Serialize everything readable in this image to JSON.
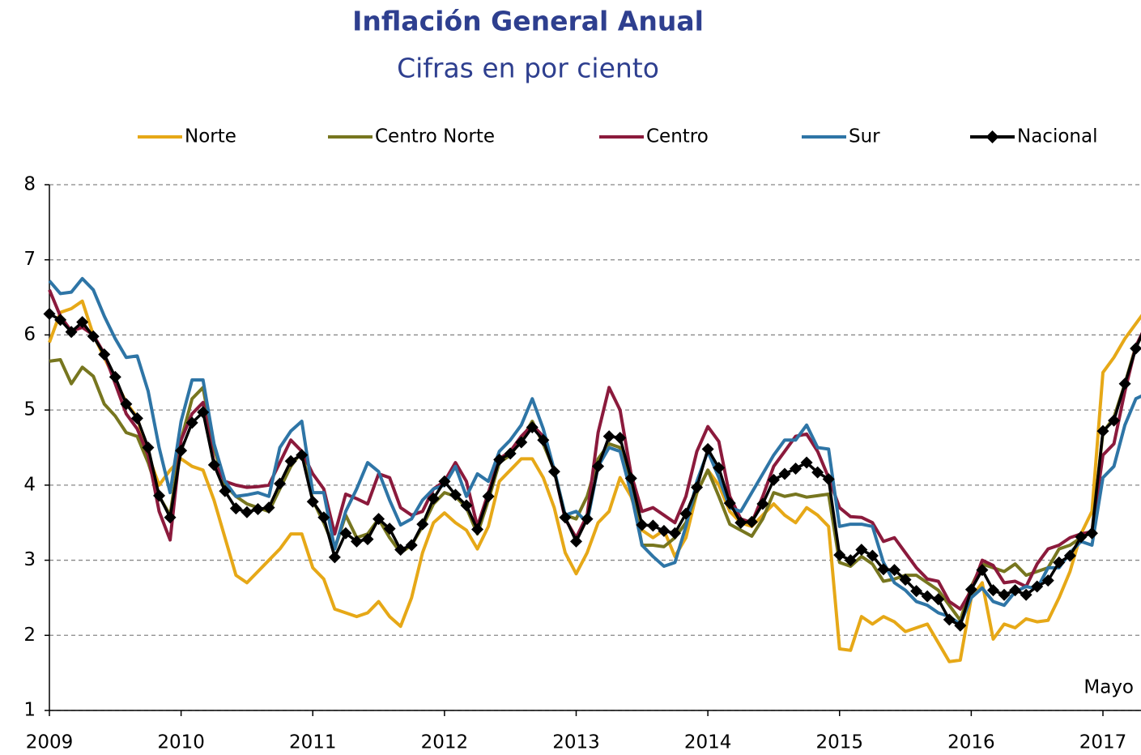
{
  "chart_data": {
    "type": "line",
    "title": "Inflación General Anual",
    "subtitle": "Cifras en por ciento",
    "annotation": "Mayo",
    "categories": [
      "2009",
      null,
      null,
      null,
      null,
      null,
      null,
      null,
      null,
      null,
      null,
      null,
      "2010",
      null,
      null,
      null,
      null,
      null,
      null,
      null,
      null,
      null,
      null,
      null,
      "2011",
      null,
      null,
      null,
      null,
      null,
      null,
      null,
      null,
      null,
      null,
      null,
      "2012",
      null,
      null,
      null,
      null,
      null,
      null,
      null,
      null,
      null,
      null,
      null,
      "2013",
      null,
      null,
      null,
      null,
      null,
      null,
      null,
      null,
      null,
      null,
      null,
      "2014",
      null,
      null,
      null,
      null,
      null,
      null,
      null,
      null,
      null,
      null,
      null,
      "2015",
      null,
      null,
      null,
      null,
      null,
      null,
      null,
      null,
      null,
      null,
      null,
      "2016",
      null,
      null,
      null,
      null,
      null,
      null,
      null,
      null,
      null,
      null,
      null,
      "2017",
      null,
      null,
      null,
      null
    ],
    "ylim": [
      1,
      8
    ],
    "yticks": [
      1,
      2,
      3,
      4,
      5,
      6,
      7,
      8
    ],
    "grid": true,
    "legend": "top",
    "series": [
      {
        "name": "Norte",
        "color": "#e6a817",
        "values": [
          5.9,
          6.3,
          6.35,
          6.45,
          6.0,
          5.7,
          5.4,
          5.1,
          4.9,
          4.4,
          4.0,
          4.2,
          4.35,
          4.25,
          4.2,
          3.8,
          3.3,
          2.8,
          2.7,
          2.85,
          3.0,
          3.15,
          3.35,
          3.35,
          2.9,
          2.75,
          2.35,
          2.3,
          2.25,
          2.3,
          2.45,
          2.25,
          2.12,
          2.5,
          3.1,
          3.5,
          3.63,
          3.5,
          3.4,
          3.15,
          3.45,
          4.05,
          4.2,
          4.35,
          4.35,
          4.1,
          3.7,
          3.1,
          2.82,
          3.1,
          3.5,
          3.65,
          4.1,
          3.85,
          3.4,
          3.3,
          3.4,
          3.05,
          3.3,
          3.9,
          4.2,
          4.0,
          3.65,
          3.5,
          3.45,
          3.6,
          3.75,
          3.6,
          3.5,
          3.7,
          3.6,
          3.45,
          1.82,
          1.8,
          2.25,
          2.15,
          2.25,
          2.18,
          2.05,
          2.1,
          2.15,
          1.9,
          1.65,
          1.67,
          2.5,
          2.7,
          1.95,
          2.15,
          2.1,
          2.22,
          2.18,
          2.2,
          2.5,
          2.85,
          3.35,
          3.65,
          5.5,
          5.7,
          5.95,
          6.15,
          6.35
        ]
      },
      {
        "name": "Centro Norte",
        "color": "#77761f",
        "values": [
          5.65,
          5.67,
          5.35,
          5.57,
          5.45,
          5.08,
          4.92,
          4.7,
          4.65,
          4.3,
          3.85,
          3.6,
          4.6,
          5.15,
          5.3,
          4.5,
          4.0,
          3.85,
          3.75,
          3.7,
          3.65,
          3.95,
          4.25,
          4.45,
          3.8,
          3.5,
          3.15,
          3.6,
          3.3,
          3.35,
          3.55,
          3.3,
          3.1,
          3.2,
          3.45,
          3.75,
          3.9,
          3.85,
          3.7,
          3.35,
          3.8,
          4.3,
          4.4,
          4.6,
          4.85,
          4.55,
          4.2,
          3.6,
          3.55,
          3.85,
          4.35,
          4.55,
          4.5,
          4.0,
          3.2,
          3.2,
          3.18,
          3.3,
          3.5,
          3.9,
          4.2,
          3.85,
          3.48,
          3.4,
          3.32,
          3.55,
          3.9,
          3.85,
          3.88,
          3.84,
          3.86,
          3.88,
          2.97,
          2.92,
          3.05,
          2.95,
          2.72,
          2.75,
          2.8,
          2.8,
          2.7,
          2.6,
          2.4,
          2.2,
          2.65,
          2.95,
          2.9,
          2.85,
          2.95,
          2.8,
          2.85,
          2.9,
          3.15,
          3.2,
          3.3,
          3.38,
          4.7,
          4.9,
          5.35,
          5.85,
          6.1
        ]
      },
      {
        "name": "Centro",
        "color": "#8b1a3c",
        "values": [
          6.6,
          6.25,
          6.05,
          6.1,
          6.0,
          5.75,
          5.35,
          4.95,
          4.75,
          4.4,
          3.65,
          3.27,
          4.6,
          4.95,
          5.1,
          4.3,
          4.05,
          4.0,
          3.97,
          3.98,
          4.0,
          4.3,
          4.6,
          4.45,
          4.15,
          3.95,
          3.35,
          3.88,
          3.82,
          3.75,
          4.15,
          4.1,
          3.7,
          3.6,
          3.65,
          3.95,
          4.05,
          4.3,
          4.05,
          3.45,
          3.9,
          4.35,
          4.45,
          4.65,
          4.8,
          4.65,
          4.2,
          3.55,
          3.3,
          3.6,
          4.7,
          5.3,
          5.0,
          4.15,
          3.65,
          3.7,
          3.6,
          3.5,
          3.85,
          4.45,
          4.78,
          4.58,
          3.85,
          3.55,
          3.5,
          3.85,
          4.25,
          4.45,
          4.65,
          4.68,
          4.45,
          4.1,
          3.7,
          3.58,
          3.57,
          3.5,
          3.25,
          3.3,
          3.1,
          2.9,
          2.75,
          2.72,
          2.45,
          2.35,
          2.6,
          3.0,
          2.93,
          2.7,
          2.72,
          2.65,
          2.95,
          3.15,
          3.2,
          3.3,
          3.35,
          3.38,
          4.4,
          4.55,
          5.25,
          5.85,
          6.15
        ]
      },
      {
        "name": "Sur",
        "color": "#2e75a6",
        "values": [
          6.72,
          6.55,
          6.57,
          6.75,
          6.6,
          6.25,
          5.95,
          5.7,
          5.72,
          5.25,
          4.5,
          3.9,
          4.85,
          5.4,
          5.4,
          4.55,
          4.05,
          3.85,
          3.87,
          3.9,
          3.85,
          4.5,
          4.72,
          4.85,
          3.9,
          3.9,
          3.15,
          3.65,
          3.95,
          4.3,
          4.18,
          3.8,
          3.47,
          3.55,
          3.8,
          3.95,
          4.0,
          4.25,
          3.85,
          4.15,
          4.05,
          4.45,
          4.6,
          4.8,
          5.15,
          4.75,
          4.2,
          3.6,
          3.65,
          3.5,
          4.25,
          4.5,
          4.45,
          3.9,
          3.2,
          3.05,
          2.92,
          2.97,
          3.45,
          4.05,
          4.45,
          4.1,
          3.7,
          3.65,
          3.9,
          4.15,
          4.4,
          4.6,
          4.6,
          4.8,
          4.5,
          4.48,
          3.45,
          3.48,
          3.48,
          3.45,
          2.97,
          2.7,
          2.6,
          2.45,
          2.4,
          2.3,
          2.25,
          2.15,
          2.5,
          2.63,
          2.45,
          2.4,
          2.58,
          2.65,
          2.62,
          2.9,
          2.9,
          3.1,
          3.25,
          3.2,
          4.1,
          4.25,
          4.8,
          5.15,
          5.22
        ]
      },
      {
        "name": "Nacional",
        "color": "#000000",
        "marker": "diamond",
        "values": [
          6.28,
          6.2,
          6.04,
          6.17,
          5.98,
          5.74,
          5.44,
          5.08,
          4.89,
          4.5,
          3.86,
          3.57,
          4.46,
          4.83,
          4.97,
          4.27,
          3.92,
          3.69,
          3.64,
          3.68,
          3.7,
          4.02,
          4.32,
          4.4,
          3.78,
          3.57,
          3.04,
          3.36,
          3.25,
          3.28,
          3.55,
          3.42,
          3.14,
          3.2,
          3.48,
          3.82,
          4.05,
          3.87,
          3.73,
          3.41,
          3.85,
          4.34,
          4.42,
          4.57,
          4.77,
          4.6,
          4.18,
          3.57,
          3.25,
          3.55,
          4.25,
          4.65,
          4.63,
          4.09,
          3.47,
          3.46,
          3.39,
          3.36,
          3.62,
          3.97,
          4.48,
          4.23,
          3.76,
          3.5,
          3.51,
          3.75,
          4.07,
          4.15,
          4.22,
          4.3,
          4.17,
          4.08,
          3.07,
          3.0,
          3.14,
          3.06,
          2.88,
          2.87,
          2.74,
          2.59,
          2.52,
          2.48,
          2.21,
          2.13,
          2.61,
          2.87,
          2.6,
          2.54,
          2.6,
          2.54,
          2.65,
          2.73,
          2.97,
          3.06,
          3.31,
          3.36,
          4.72,
          4.86,
          5.35,
          5.82,
          6.16
        ]
      }
    ]
  }
}
